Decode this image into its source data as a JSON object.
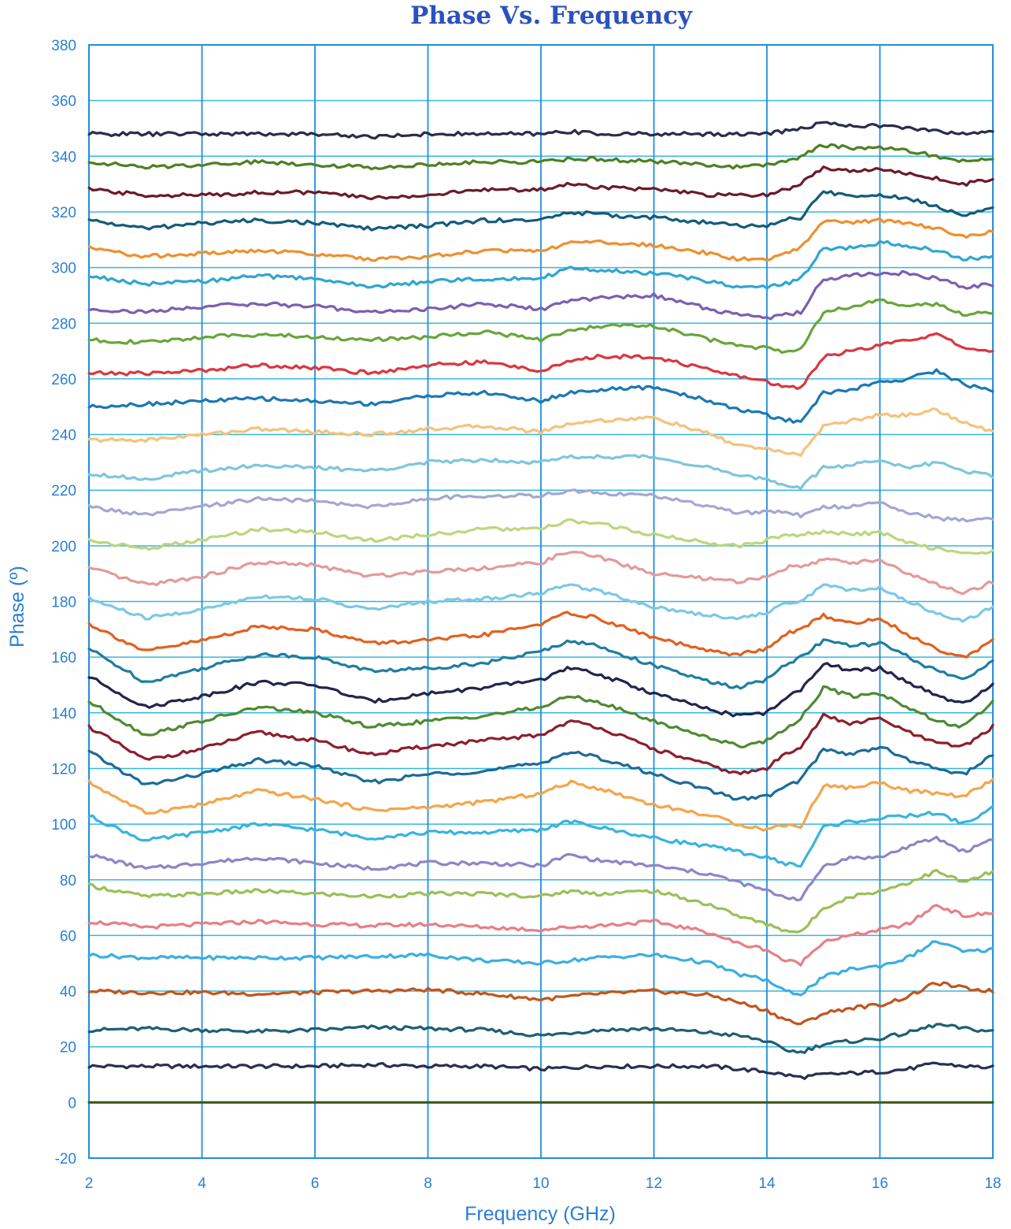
{
  "chart_data": {
    "type": "line",
    "title": "Phase Vs. Frequency",
    "xlabel": "Frequency (GHz)",
    "ylabel": "Phase (º)",
    "xlim": [
      2,
      18
    ],
    "ylim": [
      -20,
      380
    ],
    "xticks": [
      2,
      4,
      6,
      8,
      10,
      12,
      14,
      16,
      18
    ],
    "yticks": [
      -20,
      0,
      20,
      40,
      60,
      80,
      100,
      120,
      140,
      160,
      180,
      200,
      220,
      240,
      260,
      280,
      300,
      320,
      340,
      360,
      380
    ],
    "grid": true,
    "x": [
      2,
      3,
      4,
      5,
      6,
      7,
      8,
      9,
      10,
      10.5,
      11,
      12,
      13,
      13.5,
      14,
      14.3,
      14.6,
      15,
      15.5,
      16,
      16.5,
      17,
      17.5,
      18
    ],
    "series": [
      {
        "color": "#3f5a1e",
        "values": [
          0,
          0,
          0,
          0,
          0,
          0,
          0,
          0,
          0,
          0,
          0,
          0,
          0,
          0,
          0,
          0,
          0,
          0,
          0,
          0,
          0,
          0,
          0,
          0
        ]
      },
      {
        "color": "#2b2e52",
        "values": [
          13,
          13,
          13,
          13,
          13,
          13.5,
          13,
          13,
          12,
          12.5,
          13,
          13,
          13,
          12,
          11,
          10,
          9,
          10,
          10.5,
          11,
          12,
          14,
          13,
          12.5
        ]
      },
      {
        "color": "#1e5f74",
        "values": [
          26,
          26.5,
          26,
          25.5,
          26,
          27,
          26.5,
          26,
          24,
          25,
          26,
          26.5,
          25,
          24,
          22,
          19,
          18,
          21,
          22,
          23,
          25,
          28,
          26.5,
          25.5
        ]
      },
      {
        "color": "#c0561e",
        "values": [
          40,
          39.5,
          39.5,
          39,
          39.5,
          40,
          40.5,
          39,
          37,
          38,
          39,
          40,
          38.5,
          36,
          33,
          30,
          28,
          32,
          34,
          35,
          38,
          43,
          41,
          40
        ]
      },
      {
        "color": "#3aafdf",
        "values": [
          53,
          52,
          52,
          52,
          52,
          52.5,
          53,
          51,
          50,
          51,
          52,
          53,
          50,
          46,
          44,
          40,
          39,
          45,
          48,
          49,
          52,
          58,
          54,
          55
        ]
      },
      {
        "color": "#e77f86",
        "values": [
          65,
          63,
          64,
          65,
          64,
          63.5,
          64,
          63,
          62,
          63,
          63.5,
          65,
          61,
          57,
          55,
          51,
          50,
          58,
          60,
          62,
          64,
          71,
          67,
          68
        ]
      },
      {
        "color": "#9bbf59",
        "values": [
          78,
          74,
          75,
          76,
          75,
          74,
          75,
          75,
          74,
          76,
          75,
          76,
          71,
          67,
          64,
          62,
          61,
          70,
          74,
          76,
          79,
          83,
          79,
          83
        ]
      },
      {
        "color": "#8c86c6",
        "values": [
          89,
          84,
          86,
          88,
          86,
          84,
          86,
          86,
          85,
          89,
          87,
          85,
          82,
          79,
          76,
          74,
          73,
          85,
          88,
          88,
          92,
          95,
          90,
          95
        ]
      },
      {
        "color": "#38b4dd",
        "values": [
          103,
          94,
          97,
          100,
          98,
          95,
          97,
          97,
          98,
          101,
          99,
          95,
          92,
          90,
          88,
          86,
          85,
          99,
          101,
          102,
          103,
          104,
          100,
          106
        ]
      },
      {
        "color": "#f5a54b",
        "values": [
          115,
          104,
          107,
          112,
          109,
          105,
          106,
          108,
          111,
          115,
          113,
          107,
          103,
          100,
          98,
          100,
          99,
          114,
          113,
          115,
          112,
          111,
          110,
          116
        ]
      },
      {
        "color": "#1d6a9a",
        "values": [
          126,
          114,
          118,
          123,
          121,
          115,
          118,
          119,
          122,
          126,
          124,
          118,
          112,
          109,
          110,
          113,
          116,
          127,
          125,
          128,
          123,
          120,
          118,
          125
        ]
      },
      {
        "color": "#8c1f2b",
        "values": [
          135,
          123,
          127,
          133,
          130,
          125,
          128,
          130,
          132,
          137,
          135,
          127,
          121,
          118,
          120,
          125,
          128,
          139,
          136,
          138,
          133,
          129,
          128,
          135
        ]
      },
      {
        "color": "#4e8a32",
        "values": [
          144,
          132,
          137,
          142,
          140,
          135,
          137,
          139,
          142,
          146,
          144,
          137,
          131,
          128,
          130,
          134,
          138,
          149,
          146,
          147,
          142,
          137,
          135,
          144
        ]
      },
      {
        "color": "#23244d",
        "values": [
          153,
          142,
          146,
          151,
          150,
          144,
          147,
          149,
          152,
          156,
          154,
          147,
          141,
          139,
          140,
          145,
          148,
          158,
          155,
          156,
          151,
          146,
          143,
          150
        ]
      },
      {
        "color": "#1f7ea0",
        "values": [
          163,
          151,
          156,
          161,
          160,
          155,
          156,
          158,
          162,
          166,
          164,
          157,
          151,
          149,
          152,
          157,
          160,
          166,
          164,
          165,
          160,
          155,
          152,
          159
        ]
      },
      {
        "color": "#e2601f",
        "values": [
          172,
          162,
          166,
          171,
          170,
          165,
          166,
          168,
          172,
          176,
          174,
          167,
          162,
          161,
          163,
          168,
          170,
          175,
          172,
          174,
          168,
          163,
          160,
          166
        ]
      },
      {
        "color": "#7cc8e5",
        "values": [
          181,
          174,
          177,
          182,
          181,
          177,
          180,
          181,
          183,
          186,
          184,
          178,
          175,
          174,
          176,
          179,
          180,
          186,
          184,
          185,
          180,
          176,
          173,
          178
        ]
      },
      {
        "color": "#e39a9a",
        "values": [
          192,
          186,
          189,
          194,
          193,
          189,
          191,
          192,
          194,
          198,
          196,
          190,
          188,
          187,
          189,
          192,
          193,
          195,
          194,
          195,
          190,
          186,
          183,
          187
        ]
      },
      {
        "color": "#bcd67e",
        "values": [
          202,
          199,
          202,
          206,
          205,
          202,
          204,
          206,
          206,
          209,
          208,
          204,
          201,
          200,
          202,
          204,
          204,
          205,
          204,
          205,
          201,
          199,
          197,
          198
        ]
      },
      {
        "color": "#a6a6d1",
        "values": [
          214,
          211,
          214,
          217,
          216,
          214,
          217,
          218,
          218,
          220,
          219,
          218,
          214,
          212,
          212,
          212,
          211,
          214,
          214,
          216,
          212,
          210,
          209,
          210
        ]
      },
      {
        "color": "#7fc5dd",
        "values": [
          226,
          224,
          227,
          229,
          228,
          227,
          230,
          231,
          230,
          232,
          232,
          232,
          228,
          225,
          224,
          222,
          221,
          228,
          229,
          231,
          228,
          230,
          227,
          225
        ]
      },
      {
        "color": "#f5c27c",
        "values": [
          238,
          238,
          240,
          242,
          241,
          240,
          242,
          243,
          241,
          244,
          245,
          246,
          240,
          236,
          235,
          233,
          233,
          243,
          245,
          247,
          247,
          249,
          244,
          241
        ]
      },
      {
        "color": "#1c78b4",
        "values": [
          250,
          251,
          252,
          253,
          252,
          251,
          254,
          255,
          252,
          255,
          256,
          257,
          252,
          249,
          247,
          245,
          245,
          255,
          256,
          259,
          260,
          263,
          258,
          256
        ]
      },
      {
        "color": "#d9373f",
        "values": [
          262,
          262,
          263,
          265,
          264,
          262,
          265,
          266,
          263,
          266,
          268,
          268,
          263,
          261,
          259,
          257,
          257,
          268,
          270,
          272,
          274,
          276,
          271,
          270
        ]
      },
      {
        "color": "#68a53a",
        "values": [
          274,
          273,
          275,
          276,
          275,
          274,
          275,
          277,
          274,
          277,
          279,
          279,
          274,
          272,
          271,
          270,
          271,
          284,
          286,
          288,
          286,
          287,
          283,
          284
        ]
      },
      {
        "color": "#7b5fb1",
        "values": [
          285,
          284,
          286,
          287,
          286,
          284,
          285,
          287,
          285,
          288,
          289,
          290,
          285,
          283,
          282,
          283,
          284,
          296,
          297,
          298,
          298,
          296,
          293,
          294
        ]
      },
      {
        "color": "#2fa6cf",
        "values": [
          297,
          294,
          295,
          297,
          296,
          293,
          295,
          296,
          296,
          300,
          299,
          298,
          295,
          293,
          293,
          294,
          296,
          307,
          307,
          309,
          308,
          306,
          303,
          304
        ]
      },
      {
        "color": "#ee8f2f",
        "values": [
          307,
          304,
          305,
          306,
          305,
          303,
          304,
          306,
          306,
          309,
          309,
          308,
          305,
          303,
          303,
          305,
          307,
          317,
          316,
          317,
          316,
          314,
          311,
          313
        ]
      },
      {
        "color": "#135b7a",
        "values": [
          317,
          314,
          316,
          317,
          316,
          314,
          315,
          317,
          317,
          320,
          319,
          318,
          316,
          315,
          315,
          317,
          318,
          327,
          326,
          326,
          325,
          322,
          319,
          322
        ]
      },
      {
        "color": "#6a1b27",
        "values": [
          328,
          326,
          326,
          327,
          327,
          325,
          326,
          328,
          328,
          330,
          329,
          328,
          326,
          326,
          326,
          328,
          330,
          336,
          335,
          335,
          334,
          332,
          330,
          332
        ]
      },
      {
        "color": "#4f7f24",
        "values": [
          338,
          336,
          337,
          338,
          337,
          336,
          337,
          338,
          338,
          339,
          339,
          338,
          337,
          336,
          337,
          338,
          340,
          344,
          343,
          343,
          342,
          340,
          338,
          339
        ]
      },
      {
        "color": "#2b2c4b",
        "values": [
          348,
          348,
          348,
          348,
          348,
          347,
          348,
          348,
          348,
          349,
          348,
          348,
          348,
          348,
          348,
          349,
          350,
          352,
          351,
          351,
          350,
          349,
          348,
          349
        ]
      }
    ]
  }
}
